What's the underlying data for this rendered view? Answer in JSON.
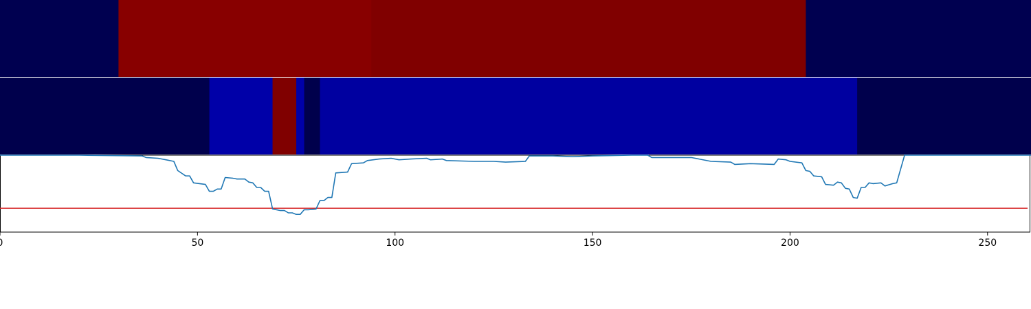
{
  "chart_data": [
    {
      "type": "heatmap",
      "xlim": [
        0,
        261
      ],
      "segments": [
        {
          "start": 0,
          "end": 30,
          "color": "#000050"
        },
        {
          "start": 30,
          "end": 94,
          "color": "#880000"
        },
        {
          "start": 94,
          "end": 204,
          "color": "#800000"
        },
        {
          "start": 204,
          "end": 261,
          "color": "#000050"
        }
      ]
    },
    {
      "type": "heatmap",
      "xlim": [
        0,
        261
      ],
      "segments": [
        {
          "start": 0,
          "end": 53,
          "color": "#00004c"
        },
        {
          "start": 53,
          "end": 69,
          "color": "#0000a8"
        },
        {
          "start": 69,
          "end": 75,
          "color": "#800000"
        },
        {
          "start": 75,
          "end": 77,
          "color": "#0000a8"
        },
        {
          "start": 77,
          "end": 81,
          "color": "#00004c"
        },
        {
          "start": 81,
          "end": 217,
          "color": "#0000a0"
        },
        {
          "start": 217,
          "end": 261,
          "color": "#00004c"
        }
      ]
    },
    {
      "type": "line",
      "xlim": [
        0,
        261
      ],
      "ylim": [
        0,
        1
      ],
      "xticks": [
        0,
        50,
        100,
        150,
        200,
        250
      ],
      "threshold": {
        "y": 0.31,
        "color": "#d62728"
      },
      "series": [
        {
          "color": "#1f77b4",
          "points": [
            [
              0,
              1.0
            ],
            [
              20,
              1.0
            ],
            [
              28,
              0.995
            ],
            [
              36,
              0.99
            ],
            [
              37,
              0.97
            ],
            [
              40,
              0.96
            ],
            [
              42,
              0.94
            ],
            [
              44,
              0.92
            ],
            [
              45,
              0.8
            ],
            [
              47,
              0.73
            ],
            [
              48,
              0.73
            ],
            [
              49,
              0.64
            ],
            [
              52,
              0.62
            ],
            [
              53,
              0.53
            ],
            [
              54,
              0.53
            ],
            [
              55,
              0.56
            ],
            [
              56,
              0.56
            ],
            [
              57,
              0.71
            ],
            [
              59,
              0.7
            ],
            [
              60,
              0.69
            ],
            [
              62,
              0.69
            ],
            [
              63,
              0.65
            ],
            [
              64,
              0.64
            ],
            [
              65,
              0.58
            ],
            [
              66,
              0.58
            ],
            [
              67,
              0.53
            ],
            [
              68,
              0.53
            ],
            [
              69,
              0.3
            ],
            [
              71,
              0.28
            ],
            [
              72,
              0.28
            ],
            [
              73,
              0.25
            ],
            [
              74,
              0.25
            ],
            [
              75,
              0.23
            ],
            [
              76,
              0.23
            ],
            [
              77,
              0.29
            ],
            [
              78,
              0.29
            ],
            [
              80,
              0.3
            ],
            [
              81,
              0.41
            ],
            [
              82,
              0.41
            ],
            [
              83,
              0.45
            ],
            [
              84,
              0.45
            ],
            [
              85,
              0.77
            ],
            [
              88,
              0.78
            ],
            [
              89,
              0.89
            ],
            [
              92,
              0.9
            ],
            [
              93,
              0.93
            ],
            [
              96,
              0.95
            ],
            [
              99,
              0.96
            ],
            [
              101,
              0.94
            ],
            [
              104,
              0.95
            ],
            [
              108,
              0.96
            ],
            [
              109,
              0.94
            ],
            [
              112,
              0.95
            ],
            [
              113,
              0.93
            ],
            [
              120,
              0.92
            ],
            [
              125,
              0.92
            ],
            [
              128,
              0.91
            ],
            [
              133,
              0.92
            ],
            [
              134,
              0.99
            ],
            [
              140,
              0.99
            ],
            [
              145,
              0.98
            ],
            [
              150,
              0.99
            ],
            [
              160,
              1.0
            ],
            [
              164,
              1.0
            ],
            [
              165,
              0.97
            ],
            [
              175,
              0.97
            ],
            [
              177,
              0.95
            ],
            [
              180,
              0.92
            ],
            [
              185,
              0.91
            ],
            [
              186,
              0.88
            ],
            [
              190,
              0.89
            ],
            [
              196,
              0.88
            ],
            [
              197,
              0.95
            ],
            [
              199,
              0.94
            ],
            [
              200,
              0.92
            ],
            [
              203,
              0.9
            ],
            [
              204,
              0.8
            ],
            [
              205,
              0.79
            ],
            [
              206,
              0.73
            ],
            [
              208,
              0.72
            ],
            [
              209,
              0.62
            ],
            [
              211,
              0.61
            ],
            [
              212,
              0.65
            ],
            [
              213,
              0.64
            ],
            [
              214,
              0.57
            ],
            [
              215,
              0.56
            ],
            [
              216,
              0.45
            ],
            [
              217,
              0.44
            ],
            [
              218,
              0.58
            ],
            [
              219,
              0.58
            ],
            [
              220,
              0.64
            ],
            [
              221,
              0.63
            ],
            [
              223,
              0.64
            ],
            [
              224,
              0.6
            ],
            [
              226,
              0.63
            ],
            [
              227,
              0.64
            ],
            [
              229,
              1.0
            ],
            [
              235,
              1.0
            ],
            [
              245,
              1.0
            ],
            [
              261,
              1.0
            ]
          ]
        }
      ]
    }
  ]
}
